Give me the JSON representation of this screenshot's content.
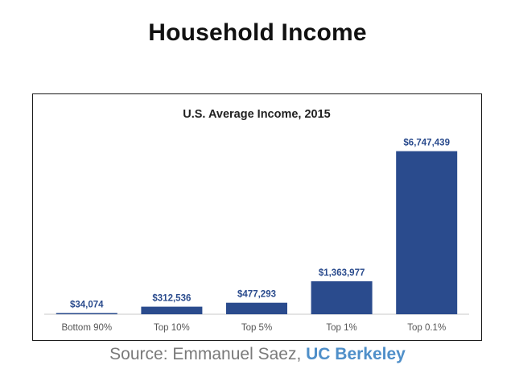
{
  "slide": {
    "title": "Household Income"
  },
  "source": {
    "prefix": "Source: Emmanuel Saez, ",
    "link": "UC Berkeley"
  },
  "chart_data": {
    "type": "bar",
    "title": "U.S. Average Income, 2015",
    "xlabel": "",
    "ylabel": "",
    "categories": [
      "Bottom 90%",
      "Top 10%",
      "Top 5%",
      "Top 1%",
      "Top 0.1%"
    ],
    "values": [
      34074,
      312536,
      477293,
      1363977,
      6747439
    ],
    "labels": [
      "$34,074",
      "$312,536",
      "$477,293",
      "$1,363,977",
      "$6,747,439"
    ],
    "ylim": [
      0,
      7500000
    ],
    "grid": false,
    "bar_color": "#2a4b8d",
    "label_color": "#2a4b8d"
  }
}
